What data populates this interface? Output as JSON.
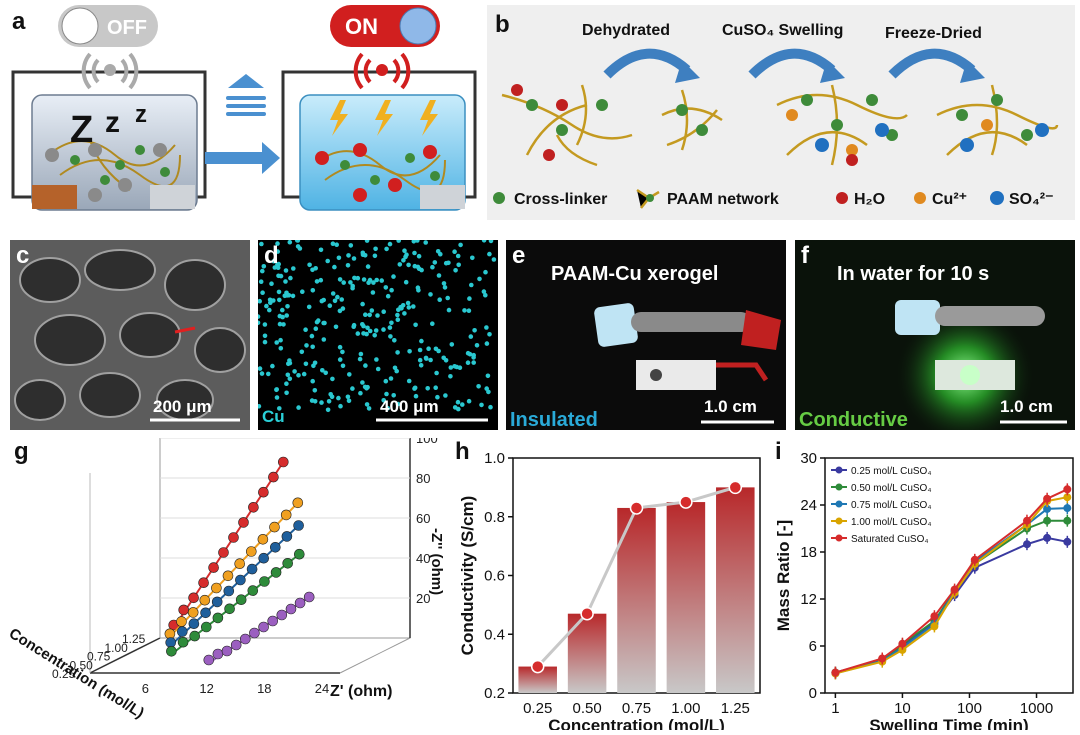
{
  "panels": {
    "a": {
      "label": "a",
      "toggle_off": "OFF",
      "toggle_on": "ON",
      "sleep": "Z",
      "sleep2": "z",
      "sleep3": "z"
    },
    "b": {
      "label": "b",
      "step1": "Dehydrated",
      "step2": "CuSO₄ Swelling",
      "step3": "Freeze-Dried",
      "legend": [
        "Cross-linker",
        "PAAM network",
        "H₂O",
        "Cu²⁺",
        "SO₄²⁻"
      ]
    },
    "c": {
      "label": "c",
      "scale": "200 μm"
    },
    "d": {
      "label": "d",
      "element": "Cu",
      "scale": "400 μm"
    },
    "e": {
      "label": "e",
      "title": "PAAM-Cu xerogel",
      "status": "Insulated",
      "scale": "1.0 cm"
    },
    "f": {
      "label": "f",
      "title": "In water for 10 s",
      "status": "Conductive",
      "scale": "1.0 cm"
    },
    "g": {
      "label": "g"
    },
    "h": {
      "label": "h"
    },
    "i": {
      "label": "i"
    }
  },
  "colors": {
    "series_red": "#d62c2c",
    "series_orange": "#f0a020",
    "series_blue": "#1f5f9c",
    "series_green": "#2e8b3a",
    "series_purple": "#9b5fc0",
    "bar": "#b8282a"
  },
  "chart_data": [
    {
      "id": "g",
      "type": "line",
      "title": "",
      "xlabel": "Z' (ohm)",
      "ylabel": "-Z'' (ohm)",
      "zlabel": "Concentration (mol/L)",
      "xticks": [
        "6",
        "12",
        "18",
        "24"
      ],
      "yticks": [
        "20",
        "40",
        "60",
        "80",
        "100"
      ],
      "zticks": [
        "1.25",
        "1.00",
        "0.75",
        "0.50",
        "0.25"
      ],
      "series": [
        {
          "name": "1.25",
          "color": "#d62c2c",
          "x": [
            1.5,
            13.5
          ],
          "y": [
            5,
            88
          ]
        },
        {
          "name": "1.00",
          "color": "#f0a020",
          "x": [
            3,
            17
          ],
          "y": [
            5,
            72
          ]
        },
        {
          "name": "0.75",
          "color": "#1f5f9c",
          "x": [
            5,
            19
          ],
          "y": [
            5,
            65
          ]
        },
        {
          "name": "0.50",
          "color": "#2e8b3a",
          "x": [
            7,
            21
          ],
          "y": [
            5,
            55
          ]
        },
        {
          "name": "0.25",
          "color": "#9b5fc0",
          "x": [
            13,
            24
          ],
          "y": [
            5,
            38
          ]
        }
      ]
    },
    {
      "id": "h",
      "type": "bar",
      "title": "",
      "categories": [
        "0.25",
        "0.50",
        "0.75",
        "1.00",
        "1.25"
      ],
      "values": [
        0.29,
        0.47,
        0.83,
        0.85,
        0.9
      ],
      "xlabel": "Concentration (mol/L)",
      "ylabel": "Conductivity (S/cm)",
      "ylim": [
        0.2,
        1.0
      ],
      "yticks": [
        "0.2",
        "0.4",
        "0.6",
        "0.8",
        "1.0"
      ]
    },
    {
      "id": "i",
      "type": "line",
      "title": "",
      "xlabel": "Swelling Time (min)",
      "ylabel": "Mass Ratio [-]",
      "xscale": "log",
      "xlim": [
        0.7,
        3500
      ],
      "ylim": [
        0,
        30
      ],
      "xticks": [
        "1",
        "10",
        "100",
        "1000"
      ],
      "yticks": [
        "0",
        "6",
        "12",
        "18",
        "24",
        "30"
      ],
      "x": [
        1,
        5,
        10,
        30,
        60,
        120,
        720,
        1440,
        2880
      ],
      "series": [
        {
          "name": "0.25 mol/L CuSO₄",
          "color": "#3a3aa0",
          "values": [
            2.6,
            4.3,
            6.0,
            9.0,
            12.5,
            16.0,
            19.0,
            19.8,
            19.3
          ]
        },
        {
          "name": "0.50 mol/L CuSO₄",
          "color": "#2e8b3a",
          "values": [
            2.6,
            4.2,
            6.2,
            9.2,
            13.0,
            16.5,
            21.0,
            22.0,
            22.0
          ]
        },
        {
          "name": "0.75 mol/L CuSO₄",
          "color": "#1f78b4",
          "values": [
            2.5,
            4.1,
            5.8,
            8.8,
            13.0,
            16.8,
            21.5,
            23.5,
            23.6
          ]
        },
        {
          "name": "1.00 mol/L CuSO₄",
          "color": "#d9a400",
          "values": [
            2.5,
            4.0,
            5.5,
            8.5,
            12.8,
            16.5,
            21.5,
            24.5,
            25.0
          ]
        },
        {
          "name": "Saturated  CuSO₄",
          "color": "#d62c2c",
          "values": [
            2.6,
            4.4,
            6.3,
            9.8,
            13.2,
            17.0,
            22.0,
            24.8,
            26.0
          ]
        }
      ]
    }
  ]
}
